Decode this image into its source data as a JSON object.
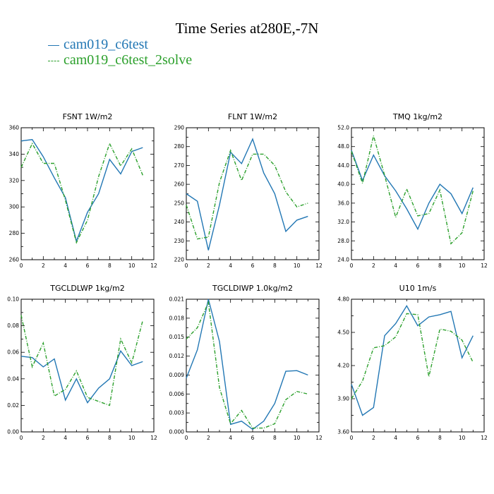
{
  "title": "Time Series at280E,-7N",
  "legend": [
    {
      "name": "cam019_c6test",
      "color": "#2277b4"
    },
    {
      "name": "cam019_c6test_2solve",
      "color": "#2ca02c"
    }
  ],
  "chart_data": [
    {
      "type": "line",
      "title": "FSNT   1W/m2",
      "x": [
        0,
        1,
        2,
        3,
        4,
        5,
        6,
        7,
        8,
        9,
        10,
        11
      ],
      "xlim": [
        0,
        12
      ],
      "xticks": [
        0,
        2,
        4,
        6,
        8,
        10,
        12
      ],
      "ylim": [
        260,
        360
      ],
      "yticks": [
        "260",
        "280",
        "300",
        "320",
        "340",
        "360"
      ],
      "series": [
        {
          "name": "cam019_c6test",
          "values": [
            350,
            351,
            338,
            322,
            307,
            274,
            296,
            310,
            336,
            325,
            342,
            345
          ]
        },
        {
          "name": "cam019_c6test_2solve",
          "values": [
            330,
            348,
            333,
            333,
            305,
            273,
            290,
            323,
            348,
            331,
            344,
            324
          ]
        }
      ]
    },
    {
      "type": "line",
      "title": "FLNT   1W/m2",
      "x": [
        0,
        1,
        2,
        3,
        4,
        5,
        6,
        7,
        8,
        9,
        10,
        11
      ],
      "xlim": [
        0,
        12
      ],
      "xticks": [
        0,
        2,
        4,
        6,
        8,
        10,
        12
      ],
      "ylim": [
        220,
        290
      ],
      "yticks": [
        "220",
        "230",
        "240",
        "250",
        "260",
        "270",
        "280",
        "290"
      ],
      "series": [
        {
          "name": "cam019_c6test",
          "values": [
            255,
            251,
            225,
            249,
            277,
            271,
            284,
            266,
            255,
            235,
            241,
            243
          ]
        },
        {
          "name": "cam019_c6test_2solve",
          "values": [
            249,
            231,
            232,
            261,
            278,
            262,
            276,
            276,
            270,
            256,
            248,
            250
          ]
        }
      ]
    },
    {
      "type": "line",
      "title": "TMQ   1kg/m2",
      "x": [
        0,
        1,
        2,
        3,
        4,
        5,
        6,
        7,
        8,
        9,
        10,
        11
      ],
      "xlim": [
        0,
        12
      ],
      "xticks": [
        0,
        2,
        4,
        6,
        8,
        10,
        12
      ],
      "ylim": [
        24,
        52
      ],
      "yticks": [
        "24.0",
        "28.0",
        "32.0",
        "36.0",
        "40.0",
        "44.0",
        "48.0",
        "52.0"
      ],
      "series": [
        {
          "name": "cam019_c6test",
          "values": [
            47.2,
            40.8,
            46.2,
            41.8,
            38.6,
            34.8,
            30.5,
            36.0,
            40.0,
            38.0,
            33.8,
            39.3
          ]
        },
        {
          "name": "cam019_c6test_2solve",
          "values": [
            47.0,
            40.2,
            50.3,
            41.9,
            33.0,
            39.0,
            33.3,
            33.8,
            38.8,
            27.4,
            29.7,
            38.6
          ]
        }
      ]
    },
    {
      "type": "line",
      "title": "TGCLDLWP   1kg/m2",
      "x": [
        0,
        1,
        2,
        3,
        4,
        5,
        6,
        7,
        8,
        9,
        10,
        11
      ],
      "xlim": [
        0,
        12
      ],
      "xticks": [
        0,
        2,
        4,
        6,
        8,
        10,
        12
      ],
      "ylim": [
        0,
        0.1
      ],
      "yticks": [
        "0.00",
        "0.02",
        "0.04",
        "0.06",
        "0.08",
        "0.10"
      ],
      "series": [
        {
          "name": "cam019_c6test",
          "values": [
            0.057,
            0.056,
            0.049,
            0.055,
            0.024,
            0.04,
            0.022,
            0.033,
            0.04,
            0.061,
            0.05,
            0.053
          ]
        },
        {
          "name": "cam019_c6test_2solve",
          "values": [
            0.088,
            0.049,
            0.067,
            0.027,
            0.032,
            0.046,
            0.026,
            0.023,
            0.02,
            0.07,
            0.052,
            0.084
          ]
        }
      ]
    },
    {
      "type": "line",
      "title": "TGCLDIWP   1.0kg/m2",
      "x": [
        0,
        1,
        2,
        3,
        4,
        5,
        6,
        7,
        8,
        9,
        10,
        11
      ],
      "xlim": [
        0,
        12
      ],
      "xticks": [
        0,
        2,
        4,
        6,
        8,
        10,
        12
      ],
      "ylim": [
        0,
        0.021
      ],
      "yticks": [
        "0.000",
        "0.003",
        "0.006",
        "0.009",
        "0.012",
        "0.015",
        "0.018",
        "0.021"
      ],
      "series": [
        {
          "name": "cam019_c6test",
          "values": [
            0.0085,
            0.013,
            0.021,
            0.0143,
            0.0012,
            0.0017,
            0.0004,
            0.0017,
            0.0045,
            0.0096,
            0.0097,
            0.009
          ]
        },
        {
          "name": "cam019_c6test_2solve",
          "values": [
            0.0147,
            0.0165,
            0.0205,
            0.007,
            0.0013,
            0.0034,
            0.0006,
            0.0006,
            0.0013,
            0.0051,
            0.0064,
            0.006
          ]
        }
      ]
    },
    {
      "type": "line",
      "title": "U10   1m/s",
      "x": [
        0,
        1,
        2,
        3,
        4,
        5,
        6,
        7,
        8,
        9,
        10,
        11
      ],
      "xlim": [
        0,
        12
      ],
      "xticks": [
        0,
        2,
        4,
        6,
        8,
        10,
        12
      ],
      "ylim": [
        3.6,
        4.8
      ],
      "yticks": [
        "3.60",
        "3.90",
        "4.20",
        "4.50",
        "4.80"
      ],
      "series": [
        {
          "name": "cam019_c6test",
          "values": [
            4.03,
            3.75,
            3.82,
            4.47,
            4.58,
            4.74,
            4.56,
            4.64,
            4.66,
            4.69,
            4.27,
            4.47
          ]
        },
        {
          "name": "cam019_c6test_2solve",
          "values": [
            3.9,
            4.06,
            4.36,
            4.38,
            4.46,
            4.67,
            4.66,
            4.1,
            4.53,
            4.51,
            4.43,
            4.23
          ]
        }
      ]
    }
  ]
}
